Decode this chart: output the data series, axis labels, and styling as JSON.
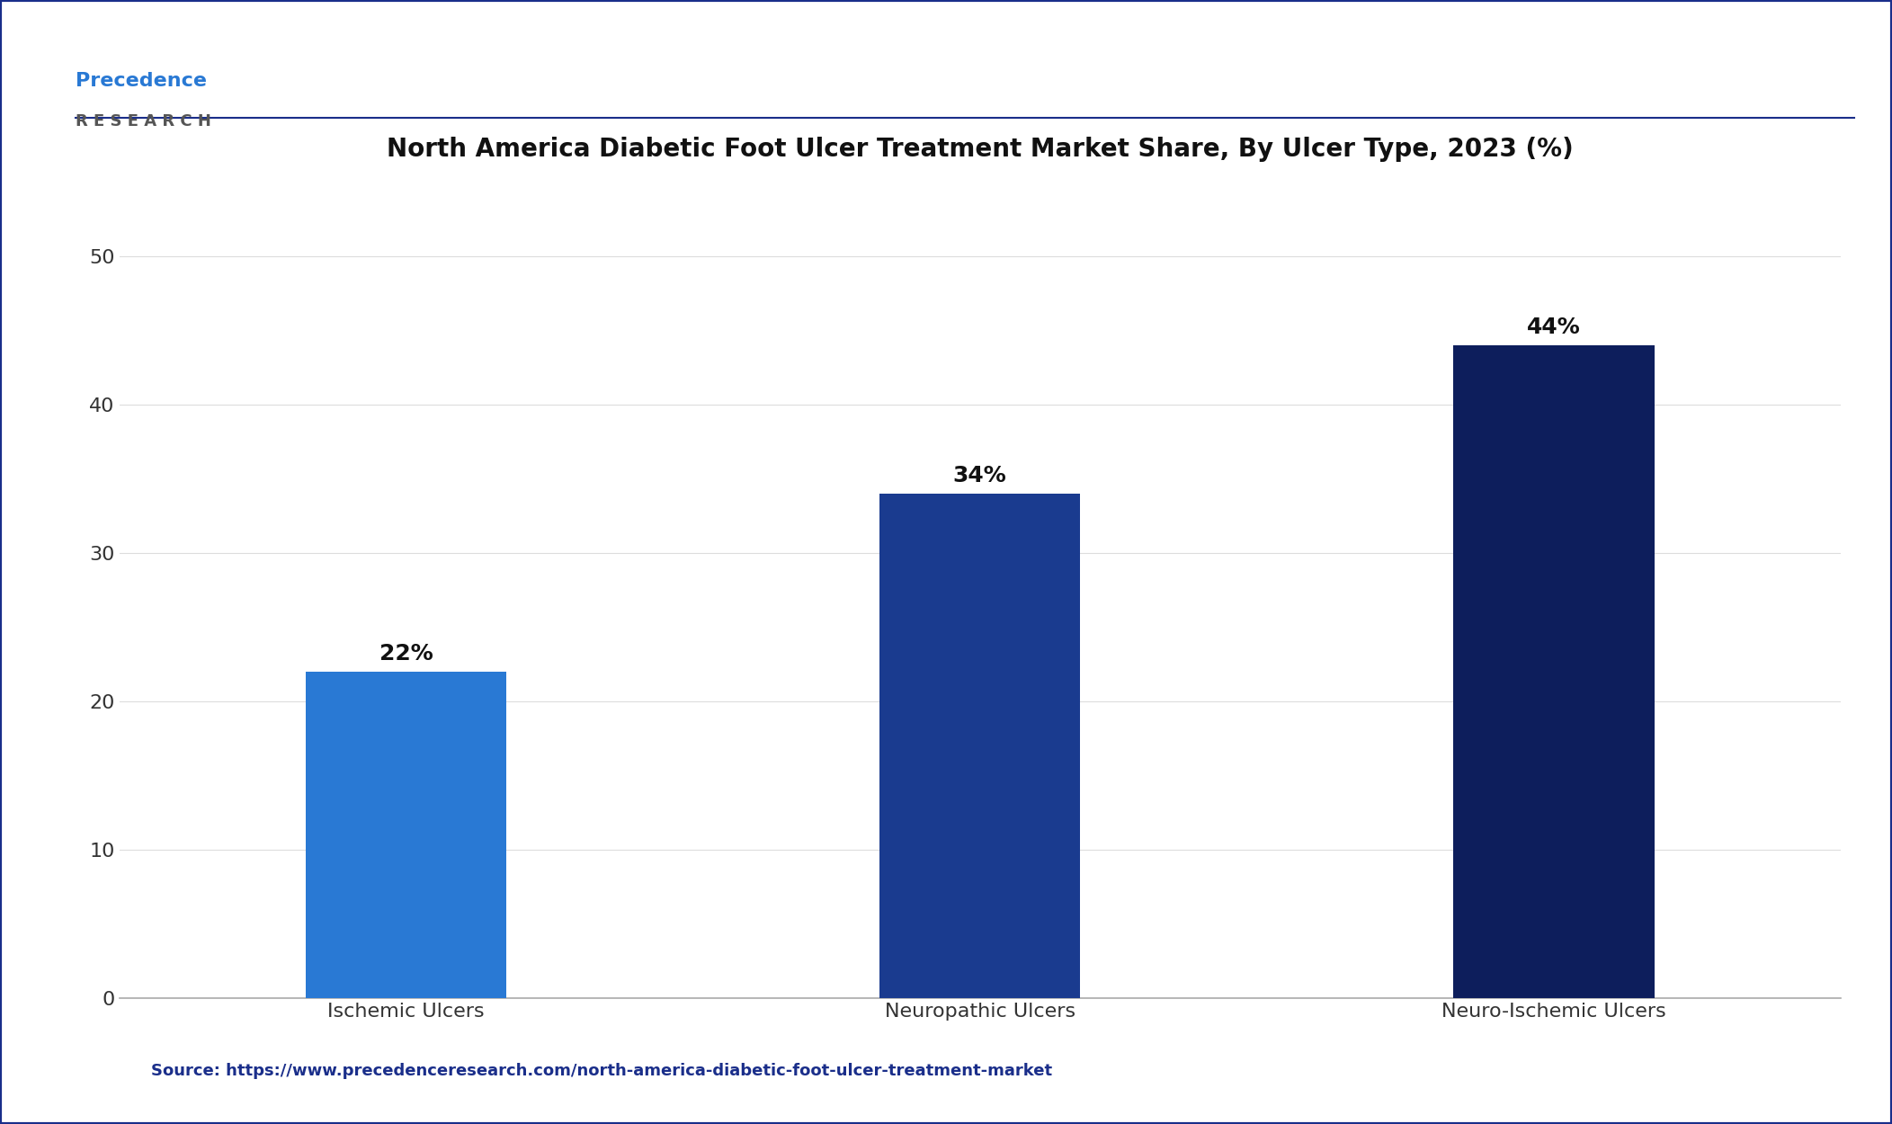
{
  "title": "North America Diabetic Foot Ulcer Treatment Market Share, By Ulcer Type, 2023 (%)",
  "categories": [
    "Ischemic Ulcers",
    "Neuropathic Ulcers",
    "Neuro-Ischemic Ulcers"
  ],
  "values": [
    22,
    34,
    44
  ],
  "labels": [
    "22%",
    "34%",
    "44%"
  ],
  "bar_colors": [
    "#2979d4",
    "#1a3b8f",
    "#0d1e5c"
  ],
  "ylim": [
    0,
    55
  ],
  "yticks": [
    0,
    10,
    20,
    30,
    40,
    50
  ],
  "background_color": "#ffffff",
  "plot_bg_color": "#ffffff",
  "title_fontsize": 20,
  "tick_fontsize": 16,
  "label_fontsize": 18,
  "source_text": "Source: https://www.precedenceresearch.com/north-america-diabetic-foot-ulcer-treatment-market",
  "source_color": "#1a2e8a",
  "border_color": "#1a2e8a",
  "top_border_color": "#1a2e8a",
  "logo_precedence_color": "#2979d4",
  "logo_research_color": "#555555"
}
